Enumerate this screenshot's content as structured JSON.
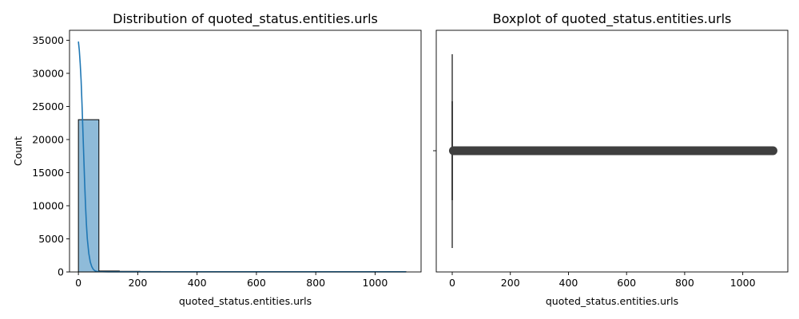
{
  "chart_data": [
    {
      "type": "histogram",
      "title": "Distribution of quoted_status.entities.urls",
      "xlabel": "quoted_status.entities.urls",
      "ylabel": "Count",
      "xlim": [
        -30,
        1155
      ],
      "ylim": [
        0,
        36500
      ],
      "x_ticks": [
        0,
        200,
        400,
        600,
        800,
        1000
      ],
      "y_ticks": [
        0,
        5000,
        10000,
        15000,
        20000,
        25000,
        30000,
        35000
      ],
      "bin_edges": [
        0,
        69,
        138,
        207,
        276,
        345,
        414,
        483,
        552,
        621,
        690,
        759,
        828,
        897,
        966,
        1035,
        1104
      ],
      "counts": [
        23000,
        140,
        90,
        70,
        60,
        55,
        50,
        45,
        45,
        40,
        40,
        40,
        35,
        35,
        35,
        35
      ],
      "bar_color": "#1f77b4",
      "kde": {
        "x": [
          0,
          3,
          6,
          9,
          12,
          15,
          18,
          21,
          24,
          27,
          30,
          35,
          40,
          45,
          50,
          55,
          60,
          65,
          70,
          80,
          100,
          150,
          200,
          300,
          500,
          800,
          1104
        ],
        "y": [
          34800,
          33500,
          31500,
          29000,
          25500,
          21500,
          17500,
          13500,
          10000,
          7200,
          5000,
          2800,
          1500,
          800,
          400,
          200,
          100,
          60,
          40,
          30,
          25,
          20,
          20,
          20,
          20,
          20,
          20
        ]
      }
    },
    {
      "type": "boxplot",
      "title": "Boxplot of quoted_status.entities.urls",
      "xlabel": "quoted_status.entities.urls",
      "xlim": [
        -55,
        1155
      ],
      "x_ticks": [
        0,
        200,
        400,
        600,
        800,
        1000
      ],
      "box": {
        "q1": 0,
        "median": 0,
        "q3": 0,
        "whisker_low": 0,
        "whisker_high": 3
      },
      "outliers_range": [
        4,
        1104
      ],
      "color": "#3f3f3f"
    }
  ]
}
